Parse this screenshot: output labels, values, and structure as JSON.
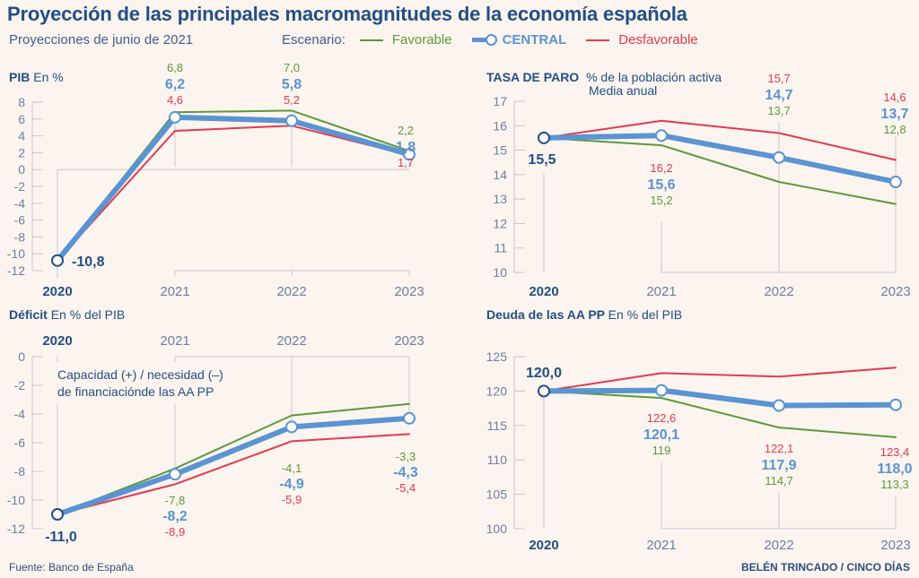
{
  "header": {
    "title": "Proyección de las principales macromagnitudes de la economía española",
    "subtitle": "Proyecciones de junio de 2021"
  },
  "legend": {
    "label": "Escenario:",
    "items": [
      {
        "name": "Favorable",
        "color": "#5b9a3c",
        "key": "favorable"
      },
      {
        "name": "CENTRAL",
        "color": "#5a94d2",
        "key": "central"
      },
      {
        "name": "Desfavorable",
        "color": "#e23a4f",
        "key": "desfavorable"
      }
    ]
  },
  "colors": {
    "favorable": "#5b9a3c",
    "central": "#5a94d2",
    "desfavorable": "#e23a4f",
    "axis": "#c9c6d2",
    "tick_text": "#6b7fa8",
    "dark_text": "#224f86"
  },
  "footer": {
    "source": "Fuente: Banco de España",
    "credit": "BELÉN TRINCADO / CINCO DÍAS"
  },
  "chart_data": [
    {
      "id": "pib",
      "type": "line",
      "title": "PIB",
      "subtitle": "En %",
      "categories": [
        "2020",
        "2021",
        "2022",
        "2023"
      ],
      "ylim": [
        -12,
        8
      ],
      "yticks": [
        8,
        6,
        4,
        2,
        0,
        -2,
        -4,
        -6,
        -8,
        -10,
        -12
      ],
      "series": [
        {
          "name": "Favorable",
          "values": [
            -10.8,
            6.8,
            7.0,
            2.2
          ],
          "labels": [
            "",
            "6,8",
            "7,0",
            "2,2"
          ]
        },
        {
          "name": "CENTRAL",
          "values": [
            -10.8,
            6.2,
            5.8,
            1.8
          ],
          "labels": [
            "-10,8",
            "6,2",
            "5,8",
            "1,8"
          ]
        },
        {
          "name": "Desfavorable",
          "values": [
            -10.8,
            4.6,
            5.2,
            1.7
          ],
          "labels": [
            "",
            "4,6",
            "5,2",
            "1,7"
          ]
        }
      ]
    },
    {
      "id": "paro",
      "type": "line",
      "title": "TASA DE PARO",
      "subtitle": "% de la población activa",
      "subtitle2": "Media anual",
      "categories": [
        "2020",
        "2021",
        "2022",
        "2023"
      ],
      "ylim": [
        10,
        17
      ],
      "yticks": [
        17,
        16,
        15,
        14,
        13,
        12,
        11,
        10
      ],
      "series": [
        {
          "name": "Favorable",
          "values": [
            15.5,
            15.2,
            13.7,
            12.8
          ],
          "labels": [
            "",
            "15,2",
            "13,7",
            "12,8"
          ]
        },
        {
          "name": "CENTRAL",
          "values": [
            15.5,
            15.6,
            14.7,
            13.7
          ],
          "labels": [
            "15,5",
            "15,6",
            "14,7",
            "13,7"
          ]
        },
        {
          "name": "Desfavorable",
          "values": [
            15.5,
            16.2,
            15.7,
            14.6
          ],
          "labels": [
            "",
            "16,2",
            "15,7",
            "14,6"
          ]
        }
      ]
    },
    {
      "id": "deficit",
      "type": "line",
      "title": "Déficit",
      "subtitle": "En % del PIB",
      "annotation": [
        "Capacidad (+) / necesidad (–)",
        "de financiaciónde las AA PP"
      ],
      "categories": [
        "2020",
        "2021",
        "2022",
        "2023"
      ],
      "ylim": [
        -12,
        0
      ],
      "yticks": [
        0,
        -2,
        -4,
        -6,
        -8,
        -10,
        -12
      ],
      "series": [
        {
          "name": "Favorable",
          "values": [
            -11.0,
            -7.8,
            -4.1,
            -3.3
          ],
          "labels": [
            "",
            "-7,8",
            "-4,1",
            "-3,3"
          ]
        },
        {
          "name": "CENTRAL",
          "values": [
            -11.0,
            -8.2,
            -4.9,
            -4.3
          ],
          "labels": [
            "-11,0",
            "-8,2",
            "-4,9",
            "-4,3"
          ]
        },
        {
          "name": "Desfavorable",
          "values": [
            -11.0,
            -8.9,
            -5.9,
            -5.4
          ],
          "labels": [
            "",
            "-8,9",
            "-5,9",
            "-5,4"
          ]
        }
      ]
    },
    {
      "id": "deuda",
      "type": "line",
      "title": "Deuda de las AA PP",
      "subtitle": "En % del PIB",
      "categories": [
        "2020",
        "2021",
        "2022",
        "2023"
      ],
      "ylim": [
        100,
        125
      ],
      "yticks": [
        125,
        120,
        115,
        110,
        105,
        100
      ],
      "series": [
        {
          "name": "Favorable",
          "values": [
            120.0,
            119.0,
            114.7,
            113.3
          ],
          "labels": [
            "",
            "119",
            "114,7",
            "113,3"
          ]
        },
        {
          "name": "CENTRAL",
          "values": [
            120.0,
            120.1,
            117.9,
            118.0
          ],
          "labels": [
            "120,0",
            "120,1",
            "117,9",
            "118,0"
          ]
        },
        {
          "name": "Desfavorable",
          "values": [
            120.0,
            122.6,
            122.1,
            123.4
          ],
          "labels": [
            "",
            "122,6",
            "122,1",
            "123,4"
          ]
        }
      ]
    }
  ]
}
